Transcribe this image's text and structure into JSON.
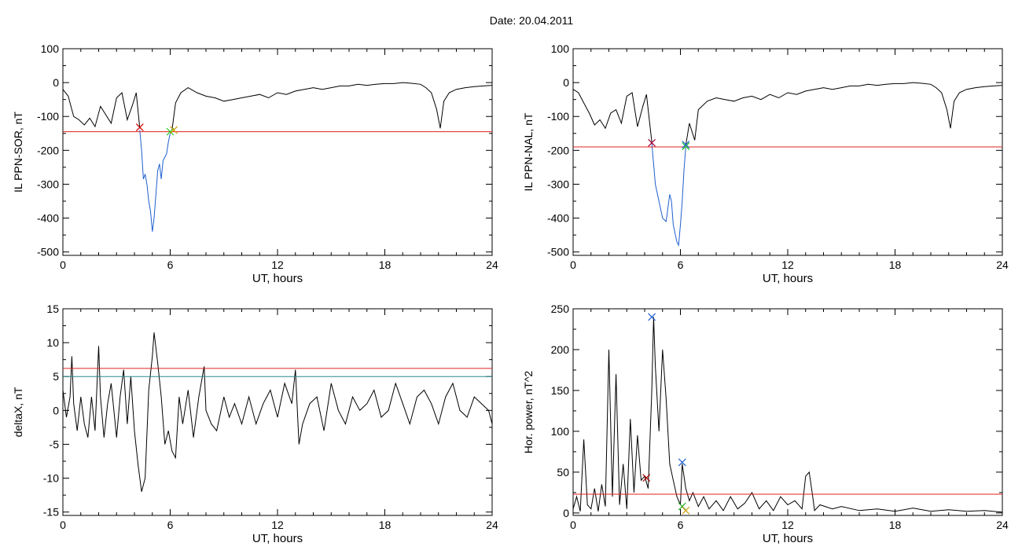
{
  "header": {
    "title": "Date:  20.04.2011"
  },
  "chart_data": [
    {
      "type": "line",
      "xlabel": "UT, hours",
      "ylabel": "IL PPN-SOR, nT",
      "xlim": [
        0,
        24
      ],
      "ylim": [
        -510,
        100
      ],
      "xticks": [
        0,
        6,
        12,
        18,
        24
      ],
      "yticks": [
        100,
        0,
        -100,
        -200,
        -300,
        -400,
        -500
      ],
      "threshold": -145,
      "series": [
        {
          "color": "#000000",
          "x": [
            0,
            0.3,
            0.6,
            0.9,
            1.2,
            1.5,
            1.8,
            2.1,
            2.4,
            2.7,
            3.0,
            3.3,
            3.6,
            3.9,
            4.1,
            4.3
          ],
          "y": [
            -20,
            -40,
            -100,
            -110,
            -125,
            -105,
            -130,
            -70,
            -95,
            -120,
            -45,
            -30,
            -110,
            -65,
            -30,
            -135
          ]
        },
        {
          "color": "#1f5fd0",
          "x": [
            4.3,
            4.4,
            4.5,
            4.6,
            4.7,
            4.8,
            4.9,
            5.0,
            5.1,
            5.2,
            5.3,
            5.4,
            5.5,
            5.6,
            5.7,
            5.8,
            5.9,
            6.0,
            6.1
          ],
          "y": [
            -140,
            -200,
            -285,
            -270,
            -300,
            -350,
            -380,
            -440,
            -400,
            -330,
            -260,
            -240,
            -285,
            -230,
            -220,
            -210,
            -175,
            -150,
            -145
          ]
        },
        {
          "color": "#000000",
          "x": [
            6.1,
            6.3,
            6.6,
            7.0,
            7.5,
            8.0,
            8.5,
            9.0,
            9.5,
            10,
            10.5,
            11,
            11.5,
            12,
            12.5,
            13,
            13.5,
            14,
            14.5,
            15,
            15.5,
            16,
            16.5,
            17,
            17.5,
            18,
            18.5,
            19,
            19.5,
            20,
            20.3,
            20.6,
            20.9,
            21.1,
            21.3,
            21.6,
            22,
            22.5,
            23,
            23.5,
            24
          ],
          "y": [
            -140,
            -60,
            -30,
            -15,
            -30,
            -40,
            -45,
            -55,
            -50,
            -45,
            -40,
            -35,
            -45,
            -30,
            -35,
            -25,
            -20,
            -15,
            -20,
            -15,
            -10,
            -10,
            -5,
            -8,
            -5,
            -3,
            -3,
            0,
            -2,
            -5,
            -15,
            -30,
            -80,
            -135,
            -55,
            -30,
            -20,
            -15,
            -12,
            -10,
            -8
          ]
        }
      ],
      "markers": [
        {
          "x": 4.3,
          "y": -132,
          "color": "#cc0000"
        },
        {
          "x": 6.0,
          "y": -145,
          "color": "#22cc22"
        },
        {
          "x": 6.2,
          "y": -140,
          "color": "#cc9900"
        }
      ]
    },
    {
      "type": "line",
      "xlabel": "UT, hours",
      "ylabel": "IL PPN-NAL, nT",
      "xlim": [
        0,
        24
      ],
      "ylim": [
        -510,
        100
      ],
      "xticks": [
        0,
        6,
        12,
        18,
        24
      ],
      "yticks": [
        100,
        0,
        -100,
        -200,
        -300,
        -400,
        -500
      ],
      "threshold": -190,
      "series": [
        {
          "color": "#000000",
          "x": [
            0,
            0.3,
            0.6,
            0.9,
            1.2,
            1.5,
            1.8,
            2.1,
            2.4,
            2.7,
            3.0,
            3.3,
            3.6,
            3.9,
            4.1,
            4.4
          ],
          "y": [
            -20,
            -30,
            -60,
            -90,
            -125,
            -110,
            -135,
            -90,
            -80,
            -120,
            -40,
            -30,
            -130,
            -70,
            -35,
            -175
          ]
        },
        {
          "color": "#1f5fd0",
          "x": [
            4.4,
            4.5,
            4.6,
            4.8,
            5.0,
            5.2,
            5.4,
            5.5,
            5.6,
            5.8,
            5.9,
            6.0,
            6.1,
            6.2,
            6.3
          ],
          "y": [
            -180,
            -240,
            -300,
            -350,
            -400,
            -410,
            -330,
            -350,
            -420,
            -470,
            -480,
            -420,
            -350,
            -260,
            -190
          ]
        },
        {
          "color": "#000000",
          "x": [
            6.3,
            6.5,
            6.8,
            7.0,
            7.5,
            8.0,
            8.5,
            9.0,
            9.5,
            10,
            10.5,
            11,
            11.5,
            12,
            12.5,
            13,
            13.5,
            14,
            14.5,
            15,
            15.5,
            16,
            16.5,
            17,
            17.5,
            18,
            18.5,
            19,
            19.5,
            20,
            20.3,
            20.6,
            20.9,
            21.1,
            21.3,
            21.6,
            22,
            22.5,
            23,
            23.5,
            24
          ],
          "y": [
            -185,
            -120,
            -170,
            -80,
            -55,
            -45,
            -50,
            -55,
            -45,
            -40,
            -50,
            -35,
            -45,
            -30,
            -35,
            -25,
            -20,
            -15,
            -20,
            -15,
            -10,
            -10,
            -5,
            -8,
            -5,
            -3,
            -3,
            0,
            -2,
            -5,
            -15,
            -30,
            -80,
            -135,
            -55,
            -30,
            -20,
            -15,
            -12,
            -10,
            -8
          ]
        }
      ],
      "markers": [
        {
          "x": 4.4,
          "y": -178,
          "color": "#aa0033"
        },
        {
          "x": 6.3,
          "y": -188,
          "color": "#22cc22"
        },
        {
          "x": 6.3,
          "y": -183,
          "color": "#1f5fd0"
        }
      ]
    },
    {
      "type": "line",
      "xlabel": "UT, hours",
      "ylabel": "deltaX, nT",
      "xlim": [
        0,
        24
      ],
      "ylim": [
        -15.5,
        15
      ],
      "xticks": [
        0,
        6,
        12,
        18,
        24
      ],
      "yticks": [
        15,
        10,
        5,
        0,
        -5,
        -10,
        -15
      ],
      "thresholds": [
        {
          "y": 6.2,
          "color": "#e02020"
        },
        {
          "y": 5.0,
          "color": "#2a8a8a"
        }
      ],
      "series": [
        {
          "color": "#000000",
          "x": [
            0,
            0.2,
            0.4,
            0.5,
            0.6,
            0.8,
            1.0,
            1.2,
            1.4,
            1.6,
            1.8,
            2.0,
            2.1,
            2.3,
            2.5,
            2.7,
            3.0,
            3.2,
            3.4,
            3.6,
            3.8,
            4.0,
            4.2,
            4.4,
            4.6,
            4.8,
            5.0,
            5.1,
            5.3,
            5.5,
            5.7,
            5.9,
            6.1,
            6.3,
            6.5,
            6.7,
            7.0,
            7.3,
            7.6,
            7.9,
            8.0,
            8.3,
            8.6,
            9.0,
            9.3,
            9.6,
            10,
            10.4,
            10.8,
            11.2,
            11.6,
            12,
            12.4,
            12.8,
            13.0,
            13.2,
            13.4,
            13.8,
            14.2,
            14.6,
            15,
            15.4,
            15.8,
            16.2,
            16.6,
            17,
            17.4,
            17.8,
            18.2,
            18.6,
            19,
            19.4,
            19.8,
            20.2,
            20.6,
            21,
            21.4,
            21.8,
            22.2,
            22.6,
            23,
            23.4,
            23.8,
            24
          ],
          "y": [
            3,
            -1,
            2,
            8,
            1,
            -3,
            2,
            -2,
            -4,
            2,
            -3,
            9.5,
            2,
            -4,
            1,
            4,
            -4,
            2,
            6,
            -2,
            5,
            -3,
            -8,
            -12,
            -10,
            3,
            8,
            11.5,
            7,
            2,
            -5,
            -3,
            -6,
            -7,
            2,
            -2,
            3,
            -4,
            2,
            6.5,
            0,
            -2,
            -3,
            2,
            -1,
            1,
            -2,
            2,
            -2,
            1,
            3,
            -1,
            4,
            1,
            6,
            -5,
            -2,
            1,
            2,
            -3,
            4,
            0,
            -2,
            2,
            0,
            1,
            3,
            -1,
            0,
            4,
            1,
            -2,
            2,
            3,
            1,
            -2,
            2,
            4,
            0,
            -1,
            2,
            1,
            0,
            -2
          ]
        }
      ]
    },
    {
      "type": "line",
      "xlabel": "UT, hours",
      "ylabel": "Hor. power, nT^2",
      "xlim": [
        0,
        24
      ],
      "ylim": [
        -3,
        250
      ],
      "xticks": [
        0,
        6,
        12,
        18,
        24
      ],
      "yticks": [
        250,
        200,
        150,
        100,
        50,
        0
      ],
      "threshold": 23,
      "series": [
        {
          "color": "#000000",
          "x": [
            0,
            0.2,
            0.4,
            0.6,
            0.8,
            1.0,
            1.2,
            1.4,
            1.6,
            1.8,
            2.0,
            2.2,
            2.4,
            2.6,
            2.8,
            3.0,
            3.2,
            3.4,
            3.6,
            3.8,
            4.0,
            4.2,
            4.4,
            4.5,
            4.6,
            4.8,
            5.0,
            5.2,
            5.4,
            5.6,
            5.8,
            6.0,
            6.1,
            6.3,
            6.5,
            6.7,
            7.0,
            7.3,
            7.6,
            8.0,
            8.4,
            8.8,
            9.2,
            9.6,
            10,
            10.4,
            10.8,
            11.2,
            11.6,
            12,
            12.4,
            12.8,
            13.0,
            13.2,
            13.4,
            13.5,
            13.8,
            14.5,
            15,
            16,
            17,
            18,
            19,
            20,
            21,
            22,
            23,
            24
          ],
          "y": [
            5,
            20,
            2,
            90,
            10,
            5,
            30,
            2,
            35,
            8,
            200,
            20,
            170,
            10,
            60,
            5,
            115,
            25,
            95,
            40,
            45,
            30,
            150,
            240,
            180,
            100,
            200,
            140,
            60,
            40,
            20,
            10,
            60,
            30,
            15,
            25,
            8,
            20,
            5,
            15,
            3,
            20,
            5,
            12,
            25,
            5,
            15,
            3,
            20,
            10,
            15,
            5,
            45,
            50,
            20,
            3,
            10,
            5,
            8,
            3,
            5,
            2,
            6,
            2,
            4,
            2,
            3,
            1
          ]
        }
      ],
      "markers": [
        {
          "x": 4.1,
          "y": 43,
          "color": "#aa0000"
        },
        {
          "x": 4.4,
          "y": 240,
          "color": "#1f5fd0"
        },
        {
          "x": 6.1,
          "y": 62,
          "color": "#1f5fd0"
        },
        {
          "x": 6.1,
          "y": 8,
          "color": "#22aa22"
        },
        {
          "x": 6.3,
          "y": 3,
          "color": "#cc9900"
        }
      ]
    }
  ]
}
